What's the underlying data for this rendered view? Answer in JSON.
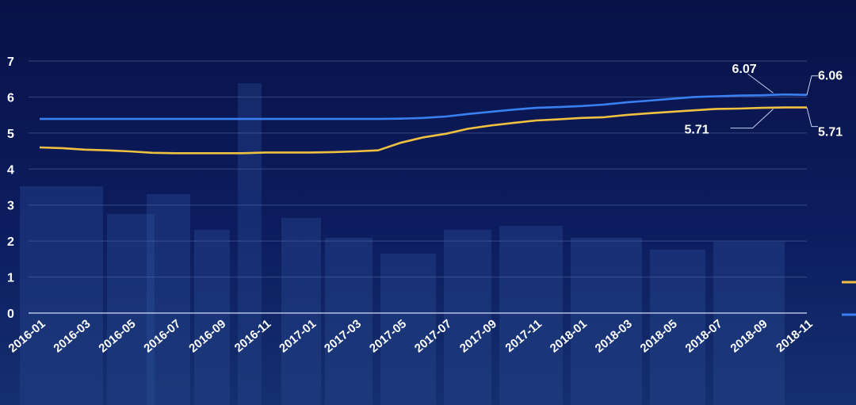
{
  "chart_data": {
    "type": "line",
    "title": "",
    "xlabel": "",
    "ylabel": "",
    "ylim": [
      0,
      7
    ],
    "yticks": [
      "0",
      "1",
      "2",
      "3",
      "4",
      "5",
      "6",
      "7"
    ],
    "grid": true,
    "legend": "right",
    "x": [
      "2016-01",
      "2016-02",
      "2016-03",
      "2016-04",
      "2016-05",
      "2016-06",
      "2016-07",
      "2016-08",
      "2016-09",
      "2016-10",
      "2016-11",
      "2016-12",
      "2017-01",
      "2017-02",
      "2017-03",
      "2017-04",
      "2017-05",
      "2017-06",
      "2017-07",
      "2017-08",
      "2017-09",
      "2017-10",
      "2017-11",
      "2017-12",
      "2018-01",
      "2018-02",
      "2018-03",
      "2018-04",
      "2018-05",
      "2018-06",
      "2018-07",
      "2018-08",
      "2018-09",
      "2018-10",
      "2018-11"
    ],
    "xticks": [
      "2016-01",
      "2016-03",
      "2016-05",
      "2016-07",
      "2016-09",
      "2016-11",
      "2017-01",
      "2017-03",
      "2017-05",
      "2017-07",
      "2017-09",
      "2017-11",
      "2018-01",
      "2018-03",
      "2018-05",
      "2018-07",
      "2018-09",
      "2018-11"
    ],
    "series": [
      {
        "color": "#f0c040",
        "values": [
          4.6,
          4.58,
          4.54,
          4.52,
          4.49,
          4.45,
          4.44,
          4.44,
          4.44,
          4.44,
          4.46,
          4.46,
          4.46,
          4.47,
          4.49,
          4.52,
          4.73,
          4.88,
          4.98,
          5.12,
          5.21,
          5.28,
          5.35,
          5.38,
          5.42,
          5.44,
          5.5,
          5.55,
          5.59,
          5.63,
          5.67,
          5.68,
          5.7,
          5.71,
          5.71
        ]
      },
      {
        "color": "#3a7ff0",
        "values": [
          5.39,
          5.39,
          5.39,
          5.39,
          5.39,
          5.39,
          5.39,
          5.39,
          5.39,
          5.39,
          5.39,
          5.39,
          5.39,
          5.39,
          5.39,
          5.39,
          5.4,
          5.42,
          5.46,
          5.53,
          5.59,
          5.65,
          5.7,
          5.72,
          5.75,
          5.79,
          5.85,
          5.9,
          5.95,
          6.0,
          6.02,
          6.04,
          6.05,
          6.07,
          6.06
        ]
      }
    ],
    "annotations": [
      {
        "text": "6.07",
        "series": 1,
        "x": "2018-10"
      },
      {
        "text": "6.06",
        "series": 1,
        "x": "2018-11"
      },
      {
        "text": "5.71",
        "series": 0,
        "x": "2018-10"
      },
      {
        "text": "5.71",
        "series": 0,
        "x": "2018-11"
      }
    ]
  }
}
